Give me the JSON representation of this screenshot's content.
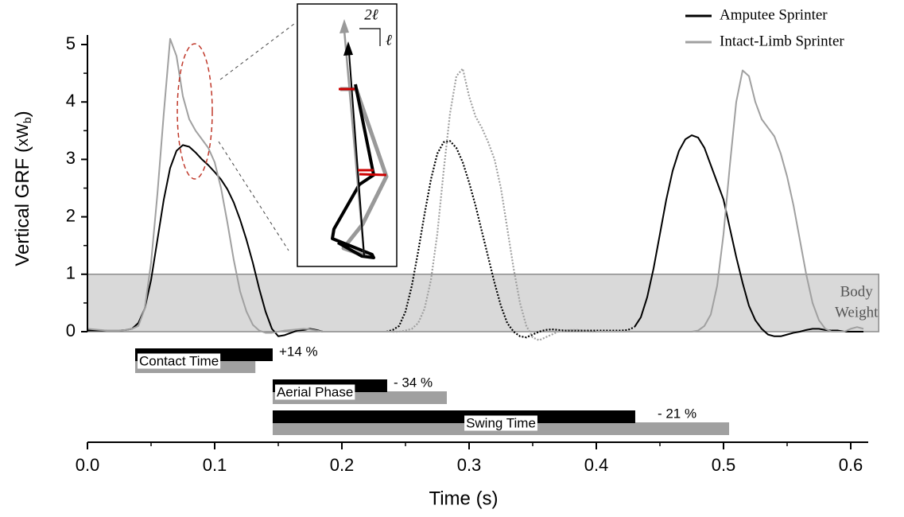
{
  "chart_data": {
    "type": "line",
    "ylabel": "Vertical GRF (",
    "ylabel_unit": "xW",
    "ylabel_sub": "b",
    "ylabel_end": ")",
    "xlabel": "Time (s)",
    "x": [
      0,
      0.005,
      0.01,
      0.015,
      0.02,
      0.025,
      0.03,
      0.035,
      0.04,
      0.045,
      0.05,
      0.055,
      0.06,
      0.065,
      0.07,
      0.075,
      0.08,
      0.085,
      0.09,
      0.095,
      0.1,
      0.105,
      0.11,
      0.115,
      0.12,
      0.125,
      0.13,
      0.135,
      0.14,
      0.145,
      0.15,
      0.155,
      0.16,
      0.165,
      0.17,
      0.175,
      0.18,
      0.185,
      0.19,
      0.195,
      0.2,
      0.205,
      0.21,
      0.215,
      0.22,
      0.225,
      0.23,
      0.235,
      0.24,
      0.245,
      0.25,
      0.255,
      0.26,
      0.265,
      0.27,
      0.275,
      0.28,
      0.285,
      0.29,
      0.295,
      0.3,
      0.305,
      0.31,
      0.315,
      0.32,
      0.325,
      0.33,
      0.335,
      0.34,
      0.345,
      0.35,
      0.355,
      0.36,
      0.365,
      0.37,
      0.375,
      0.38,
      0.385,
      0.39,
      0.395,
      0.4,
      0.405,
      0.41,
      0.415,
      0.42,
      0.425,
      0.43,
      0.435,
      0.44,
      0.445,
      0.45,
      0.455,
      0.46,
      0.465,
      0.47,
      0.475,
      0.48,
      0.485,
      0.49,
      0.495,
      0.5,
      0.505,
      0.51,
      0.515,
      0.52,
      0.525,
      0.53,
      0.535,
      0.54,
      0.545,
      0.55,
      0.555,
      0.56,
      0.565,
      0.57,
      0.575,
      0.58,
      0.585,
      0.59,
      0.595,
      0.6,
      0.605,
      0.61
    ],
    "series": [
      {
        "name": "Amputee Sprinter",
        "color": "#000000",
        "dotted_range": [
          0.235,
          0.43
        ],
        "values": [
          0.02,
          0.02,
          0.02,
          0.02,
          0.02,
          0.02,
          0.03,
          0.05,
          0.15,
          0.4,
          0.9,
          1.6,
          2.3,
          2.85,
          3.15,
          3.25,
          3.22,
          3.12,
          3.0,
          2.9,
          2.78,
          2.65,
          2.48,
          2.25,
          1.95,
          1.6,
          1.2,
          0.75,
          0.35,
          0.05,
          -0.08,
          -0.06,
          -0.02,
          0.02,
          0.03,
          0.05,
          0.03,
          0.0,
          0.0,
          0.0,
          0.0,
          0.0,
          0.0,
          0.0,
          0.0,
          0.0,
          0.0,
          0.0,
          0.03,
          0.1,
          0.35,
          0.8,
          1.4,
          2.05,
          2.65,
          3.1,
          3.3,
          3.32,
          3.2,
          2.95,
          2.6,
          2.2,
          1.75,
          1.3,
          0.85,
          0.45,
          0.15,
          0.0,
          -0.08,
          -0.1,
          -0.05,
          0.0,
          0.03,
          0.04,
          0.03,
          0.02,
          0.02,
          0.02,
          0.02,
          0.02,
          0.02,
          0.02,
          0.02,
          0.02,
          0.02,
          0.03,
          0.08,
          0.25,
          0.6,
          1.1,
          1.7,
          2.3,
          2.8,
          3.15,
          3.35,
          3.42,
          3.38,
          3.2,
          2.9,
          2.6,
          2.3,
          1.8,
          1.3,
          0.85,
          0.45,
          0.2,
          0.05,
          -0.05,
          -0.08,
          -0.08,
          -0.05,
          -0.02,
          0.0,
          0.03,
          0.05,
          0.05,
          0.03,
          0.02,
          0.02,
          0.0,
          0.0,
          0.0,
          0.0
        ]
      },
      {
        "name": "Intact-Limb Sprinter",
        "color": "#a0a0a0",
        "dotted_range": [
          0.24,
          0.4
        ],
        "values": [
          0.05,
          0.04,
          0.03,
          0.02,
          0.02,
          0.02,
          0.03,
          0.05,
          0.1,
          0.4,
          1.2,
          2.4,
          3.8,
          5.1,
          4.8,
          4.1,
          3.7,
          3.5,
          3.35,
          3.2,
          2.95,
          2.5,
          1.9,
          1.25,
          0.7,
          0.35,
          0.12,
          0.02,
          -0.02,
          -0.02,
          0.0,
          0.02,
          0.03,
          0.04,
          0.05,
          0.04,
          0.02,
          0.0,
          0.0,
          0.0,
          0.0,
          0.0,
          0.0,
          0.0,
          0.0,
          0.0,
          0.0,
          0.0,
          0.0,
          0.0,
          0.02,
          0.05,
          0.15,
          0.4,
          0.9,
          1.7,
          2.8,
          3.8,
          4.45,
          4.58,
          4.1,
          3.75,
          3.55,
          3.3,
          3.0,
          2.5,
          1.8,
          1.1,
          0.5,
          0.1,
          -0.1,
          -0.15,
          -0.1,
          -0.05,
          0.0,
          0.02,
          0.03,
          0.03,
          0.02,
          0.0,
          0.0,
          0.0,
          0.0,
          0.0,
          0.0,
          0.0,
          0.0,
          0.0,
          0.0,
          0.0,
          0.0,
          0.0,
          0.0,
          0.0,
          0.0,
          0.0,
          0.02,
          0.1,
          0.3,
          0.8,
          1.7,
          2.9,
          4.0,
          4.55,
          4.45,
          4.0,
          3.7,
          3.55,
          3.4,
          3.1,
          2.7,
          2.2,
          1.6,
          1.0,
          0.5,
          0.2,
          0.05,
          0.0,
          0.0,
          0.0,
          0.05,
          0.08,
          0.05
        ]
      }
    ],
    "xlim": [
      0,
      0.6125
    ],
    "ylim": [
      0,
      5
    ],
    "xticks": [
      {
        "value": 0,
        "label": "0.0"
      },
      0.1,
      0.2,
      0.3,
      0.4,
      0.5,
      0.6
    ],
    "xminorticks": [
      0.05,
      0.15,
      0.25,
      0.35,
      0.45,
      0.55
    ],
    "yticks": [
      0,
      1,
      2,
      3,
      4,
      5
    ],
    "yminorticks": [
      0.5,
      1.5,
      2.5,
      3.5,
      4.5
    ],
    "band": {
      "lines": [
        "Body",
        "Weight"
      ],
      "y": [
        0,
        1
      ],
      "x": [
        0,
        0.622
      ]
    },
    "phases": [
      {
        "label": "Contact Time",
        "change": "+14 %",
        "amputee": [
          0.0375,
          0.1456
        ],
        "intact": [
          0.0375,
          0.132
        ]
      },
      {
        "label": "Aerial Phase",
        "change": "- 34 %",
        "amputee": [
          0.1456,
          0.2356
        ],
        "intact": [
          0.1456,
          0.2825
        ]
      },
      {
        "label": "Swing Time",
        "change": "- 21 %",
        "amputee": [
          0.1456,
          0.4306
        ],
        "intact": [
          0.1456,
          0.5044
        ]
      }
    ],
    "inset": {
      "labels": [
        "2ℓ",
        "ℓ"
      ]
    }
  }
}
